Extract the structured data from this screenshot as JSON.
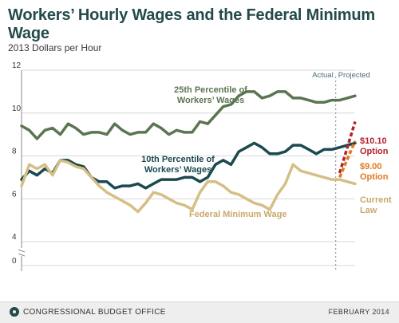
{
  "page": {
    "title": "Workers’ Hourly Wages and the Federal Minimum Wage",
    "subtitle": "2013 Dollars per Hour",
    "footer_source": "CONGRESSIONAL BUDGET OFFICE",
    "footer_date": "FEBRUARY 2014",
    "logo_icon": "cbo-logo-icon"
  },
  "chart_data": {
    "type": "line",
    "ylabel": "2013 Dollars per Hour",
    "ylim": [
      0,
      12
    ],
    "y_axis_break": true,
    "yticks": [
      0,
      4,
      6,
      8,
      10,
      12
    ],
    "xlim": [
      1973,
      2016
    ],
    "xticks": [
      1973,
      1978,
      1983,
      1988,
      1993,
      1998,
      2003,
      2008,
      2013
    ],
    "grid": true,
    "divider": {
      "x": 2013.5,
      "left_label": "Actual",
      "right_label": "Projected"
    },
    "series": [
      {
        "name": "25th Percentile of Workers’ Wages",
        "label_lines": [
          "25th Percentile of",
          "Workers’ Wages"
        ],
        "color": "#5b7552",
        "x": [
          1973,
          1974,
          1975,
          1976,
          1977,
          1978,
          1979,
          1980,
          1981,
          1982,
          1983,
          1984,
          1985,
          1986,
          1987,
          1988,
          1989,
          1990,
          1991,
          1992,
          1993,
          1994,
          1995,
          1996,
          1997,
          1998,
          1999,
          2000,
          2001,
          2002,
          2003,
          2004,
          2005,
          2006,
          2007,
          2008,
          2009,
          2010,
          2011,
          2012,
          2013,
          2014,
          2015,
          2016
        ],
        "values": [
          9.4,
          9.2,
          8.8,
          9.2,
          9.3,
          9.0,
          9.5,
          9.3,
          9.0,
          9.1,
          9.1,
          9.0,
          9.5,
          9.2,
          9.0,
          9.1,
          9.1,
          9.5,
          9.3,
          9.0,
          9.2,
          9.1,
          9.1,
          9.6,
          9.5,
          9.9,
          10.3,
          10.4,
          10.8,
          11.0,
          11.0,
          10.7,
          10.8,
          11.0,
          11.0,
          10.7,
          10.7,
          10.6,
          10.5,
          10.5,
          10.6,
          10.6,
          10.7,
          10.8
        ]
      },
      {
        "name": "10th Percentile of Workers’ Wages",
        "label_lines": [
          "10th Percentile of",
          "Workers’ Wages"
        ],
        "color": "#1a4a4f",
        "x": [
          1973,
          1974,
          1975,
          1976,
          1977,
          1978,
          1979,
          1980,
          1981,
          1982,
          1983,
          1984,
          1985,
          1986,
          1987,
          1988,
          1989,
          1990,
          1991,
          1992,
          1993,
          1994,
          1995,
          1996,
          1997,
          1998,
          1999,
          2000,
          2001,
          2002,
          2003,
          2004,
          2005,
          2006,
          2007,
          2008,
          2009,
          2010,
          2011,
          2012,
          2013,
          2014,
          2015,
          2016
        ],
        "values": [
          6.9,
          7.3,
          7.1,
          7.4,
          7.2,
          7.8,
          7.8,
          7.6,
          7.5,
          7.0,
          6.8,
          6.8,
          6.5,
          6.6,
          6.6,
          6.7,
          6.5,
          6.7,
          6.9,
          6.9,
          6.9,
          7.0,
          7.0,
          6.8,
          7.0,
          7.6,
          7.8,
          7.6,
          8.2,
          8.4,
          8.6,
          8.4,
          8.1,
          8.1,
          8.2,
          8.5,
          8.5,
          8.3,
          8.1,
          8.3,
          8.3,
          8.4,
          8.5,
          8.6
        ]
      },
      {
        "name": "Federal Minimum Wage",
        "label_lines": [
          "Federal Minimum Wage"
        ],
        "color": "#d6bf86",
        "x": [
          1973,
          1974,
          1975,
          1976,
          1977,
          1978,
          1979,
          1980,
          1981,
          1982,
          1983,
          1984,
          1985,
          1986,
          1987,
          1988,
          1989,
          1990,
          1991,
          1992,
          1993,
          1994,
          1995,
          1996,
          1997,
          1998,
          1999,
          2000,
          2001,
          2002,
          2003,
          2004,
          2005,
          2006,
          2007,
          2008,
          2009,
          2010,
          2011,
          2012,
          2013,
          2014,
          2015,
          2016
        ],
        "values": [
          6.6,
          7.6,
          7.4,
          7.6,
          7.1,
          7.8,
          7.7,
          7.5,
          7.4,
          7.0,
          6.6,
          6.3,
          6.1,
          5.9,
          5.7,
          5.4,
          5.8,
          6.3,
          6.2,
          6.0,
          5.8,
          5.7,
          5.5,
          6.3,
          6.8,
          6.8,
          6.6,
          6.3,
          6.2,
          6.0,
          5.8,
          5.7,
          5.5,
          6.2,
          6.7,
          7.6,
          7.3,
          7.2,
          7.1,
          7.0,
          6.9,
          6.9,
          6.8,
          6.7
        ]
      }
    ],
    "projections": [
      {
        "name": "$10.10 Option",
        "label_lines": [
          "$10.10",
          "Option"
        ],
        "color": "#b5212b",
        "x": [
          2014,
          2016
        ],
        "values": [
          7.2,
          9.6
        ]
      },
      {
        "name": "$9.00 Option",
        "label_lines": [
          "$9.00",
          "Option"
        ],
        "color": "#e0771f",
        "x": [
          2014,
          2016
        ],
        "values": [
          7.0,
          8.7
        ]
      },
      {
        "name": "Current Law",
        "label_lines": [
          "Current",
          "Law"
        ],
        "color": "#d6bf86",
        "x": [
          2014,
          2016
        ],
        "values": [
          7.0,
          6.7
        ]
      }
    ]
  }
}
